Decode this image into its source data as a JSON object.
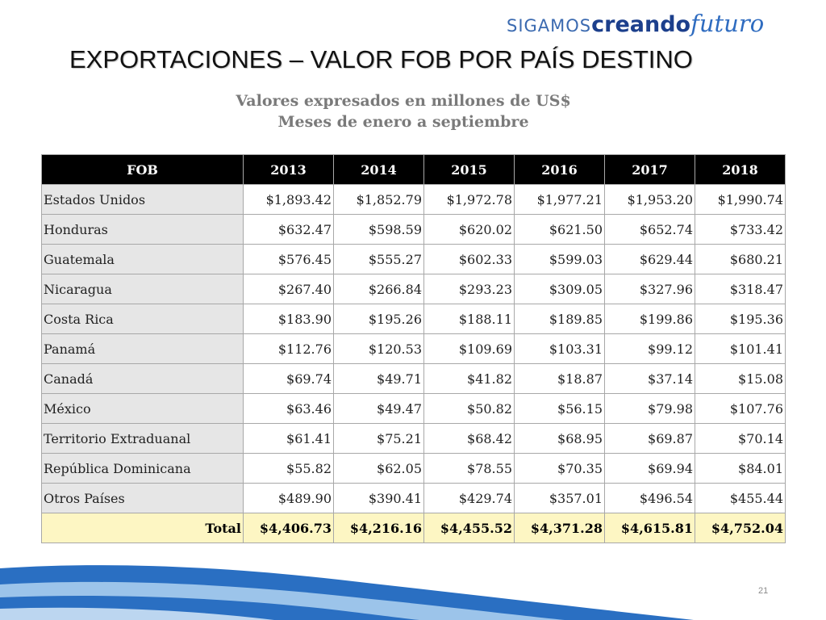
{
  "logo": {
    "part1": "SIGAMOS",
    "part2": "creando",
    "part3": "futuro"
  },
  "title": "EXPORTACIONES –  VALOR FOB POR PAÍS DESTINO",
  "subtitle": [
    "Valores expresados en millones de US$",
    "Meses de enero a septiembre"
  ],
  "table": {
    "headers": [
      "FOB",
      "2013",
      "2014",
      "2015",
      "2016",
      "2017",
      "2018"
    ],
    "rows": [
      [
        "Estados Unidos",
        "$1,893.42",
        "$1,852.79",
        "$1,972.78",
        "$1,977.21",
        "$1,953.20",
        "$1,990.74"
      ],
      [
        "Honduras",
        "$632.47",
        "$598.59",
        "$620.02",
        "$621.50",
        "$652.74",
        "$733.42"
      ],
      [
        "Guatemala",
        "$576.45",
        "$555.27",
        "$602.33",
        "$599.03",
        "$629.44",
        "$680.21"
      ],
      [
        "Nicaragua",
        "$267.40",
        "$266.84",
        "$293.23",
        "$309.05",
        "$327.96",
        "$318.47"
      ],
      [
        "Costa Rica",
        "$183.90",
        "$195.26",
        "$188.11",
        "$189.85",
        "$199.86",
        "$195.36"
      ],
      [
        "Panamá",
        "$112.76",
        "$120.53",
        "$109.69",
        "$103.31",
        "$99.12",
        "$101.41"
      ],
      [
        "Canadá",
        "$69.74",
        "$49.71",
        "$41.82",
        "$18.87",
        "$37.14",
        "$15.08"
      ],
      [
        "México",
        "$63.46",
        "$49.47",
        "$50.82",
        "$56.15",
        "$79.98",
        "$107.76"
      ],
      [
        "Territorio Extraduanal",
        "$61.41",
        "$75.21",
        "$68.42",
        "$68.95",
        "$69.87",
        "$70.14"
      ],
      [
        "República Dominicana",
        "$55.82",
        "$62.05",
        "$78.55",
        "$70.35",
        "$69.94",
        "$84.01"
      ],
      [
        "Otros Países",
        "$489.90",
        "$390.41",
        "$429.74",
        "$357.01",
        "$496.54",
        "$455.44"
      ]
    ],
    "total": [
      "Total",
      "$4,406.73",
      "$4,216.16",
      "$4,455.52",
      "$4,371.28",
      "$4,615.81",
      "$4,752.04"
    ]
  },
  "page_number": "21",
  "colors": {
    "header_bg": "#000000",
    "label_bg": "#e6e6e6",
    "total_bg": "#fdf6c3",
    "wave_blue": "#2a6fc2"
  }
}
